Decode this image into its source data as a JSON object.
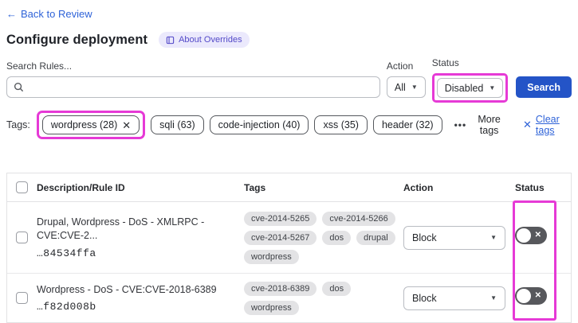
{
  "header": {
    "back_link": "Back to Review",
    "back_arrow": "←",
    "title": "Configure deployment",
    "about_badge": "About Overrides"
  },
  "filters": {
    "search_label": "Search Rules...",
    "search_value": "",
    "action_label": "Action",
    "action_value": "All",
    "status_label": "Status",
    "status_value": "Disabled",
    "search_button": "Search",
    "caret": "▼"
  },
  "tags_bar": {
    "label": "Tags:",
    "selected_tag": {
      "label": "wordpress (28)",
      "remove": "✕"
    },
    "tags": [
      "sqli (63)",
      "code-injection (40)",
      "xss (35)",
      "header (32)"
    ],
    "more_dots": "•••",
    "more_tags": "More tags",
    "clear_x": "✕",
    "clear_tags": "Clear tags"
  },
  "table": {
    "columns": [
      "Description/Rule ID",
      "Tags",
      "Action",
      "Status"
    ],
    "rows": [
      {
        "description": "Drupal, Wordpress - DoS - XMLRPC - CVE:CVE-2...",
        "rule_id": "…84534ffa",
        "tags": [
          "cve-2014-5265",
          "cve-2014-5266",
          "cve-2014-5267",
          "dos",
          "drupal",
          "wordpress"
        ],
        "action": "Block",
        "status": "disabled",
        "toggle_glyph": "✕"
      },
      {
        "description": "Wordpress - DoS - CVE:CVE-2018-6389",
        "rule_id": "…f82d008b",
        "tags": [
          "cve-2018-6389",
          "dos",
          "wordpress"
        ],
        "action": "Block",
        "status": "disabled",
        "toggle_glyph": "✕"
      }
    ]
  },
  "colors": {
    "accent_blue": "#2f63d8",
    "button_blue": "#2454c7",
    "highlight_magenta": "#e63ad6",
    "badge_bg": "#ebe9fc",
    "badge_text": "#5349c8",
    "toggle_off_bg": "#57585c",
    "mini_tag_bg": "#e3e3e5"
  }
}
